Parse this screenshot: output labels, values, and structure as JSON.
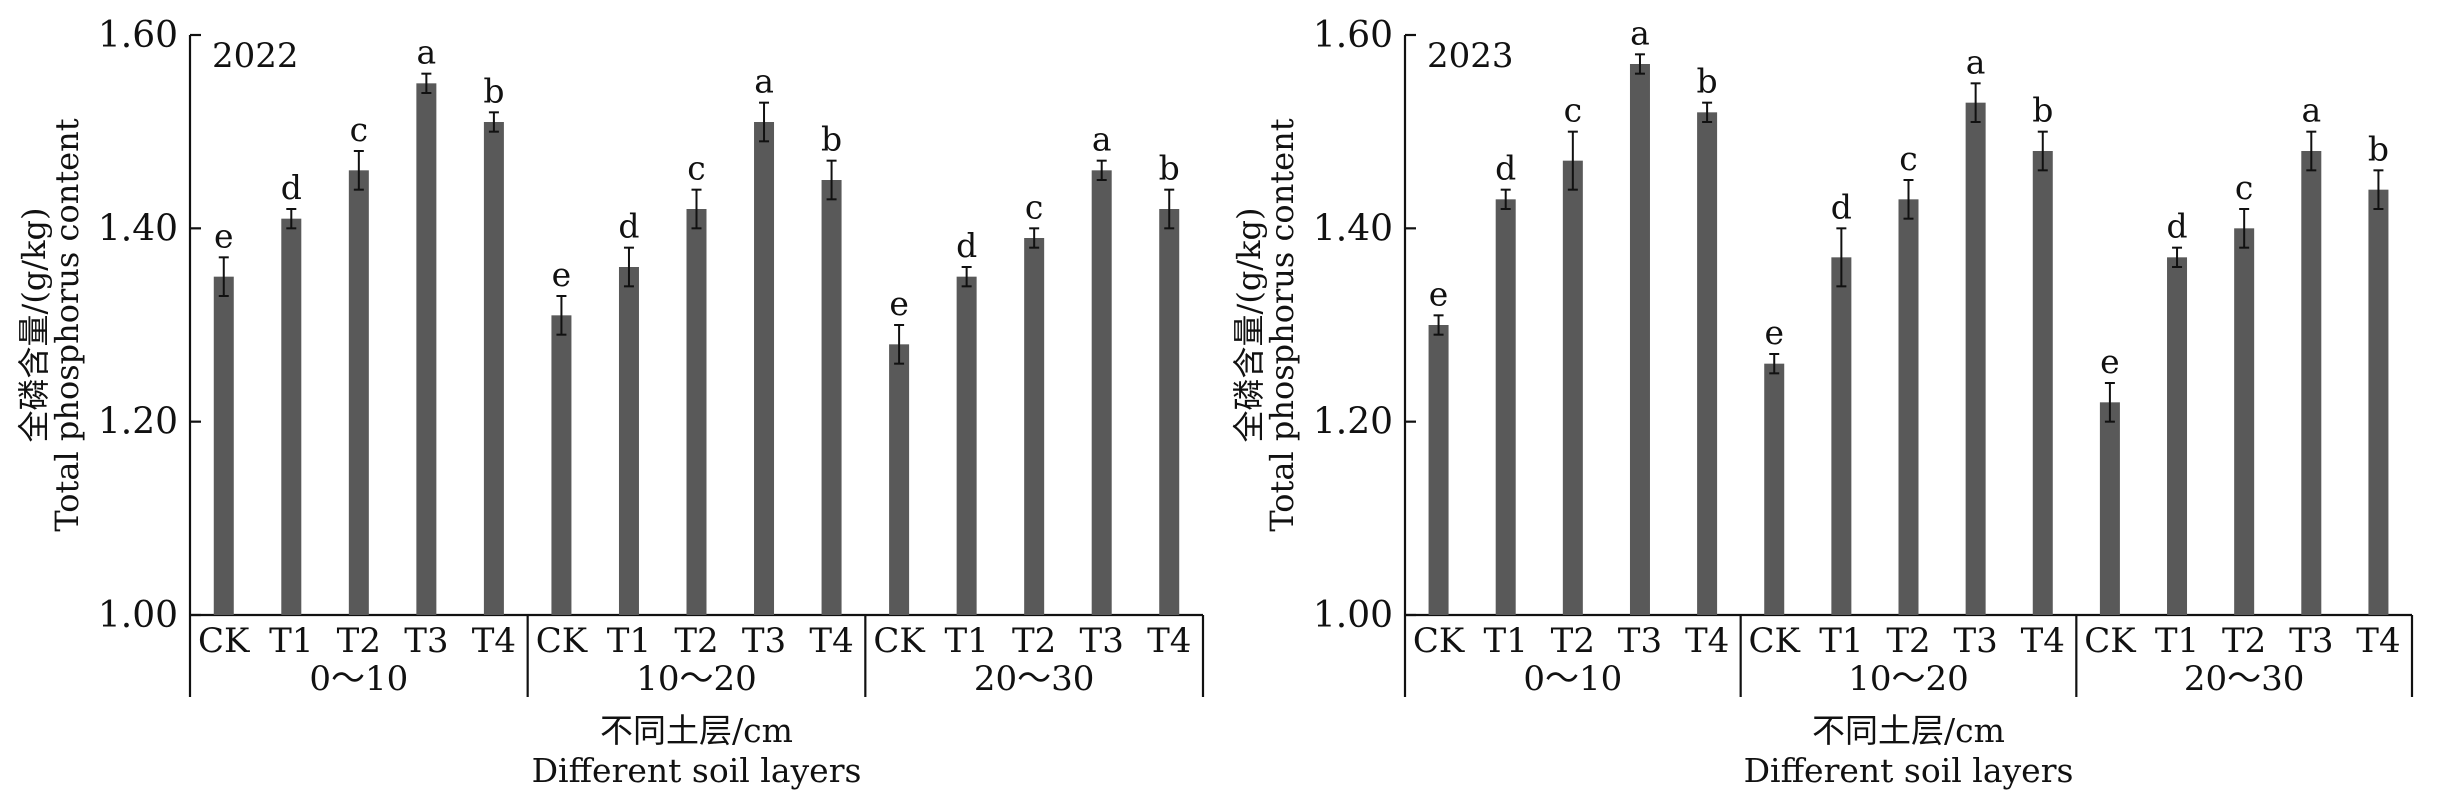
{
  "chart_data": [
    {
      "type": "bar",
      "year_label": "2022",
      "ylabel_cn": "全磷含量/(g/kg)",
      "ylabel_en": "Total phosphorus content",
      "xlabel_cn": "不同土层/cm",
      "xlabel_en": "Different soil layers",
      "ylim": [
        1.0,
        1.6
      ],
      "yticks": [
        "1.00",
        "1.20",
        "1.40",
        "1.60"
      ],
      "groups": [
        {
          "name": "0～10",
          "categories": [
            "CK",
            "T1",
            "T2",
            "T3",
            "T4"
          ],
          "values": [
            1.35,
            1.41,
            1.46,
            1.55,
            1.51
          ],
          "errors": [
            0.02,
            0.01,
            0.02,
            0.01,
            0.01
          ],
          "letters": [
            "e",
            "d",
            "c",
            "a",
            "b"
          ]
        },
        {
          "name": "10～20",
          "categories": [
            "CK",
            "T1",
            "T2",
            "T3",
            "T4"
          ],
          "values": [
            1.31,
            1.36,
            1.42,
            1.51,
            1.45
          ],
          "errors": [
            0.02,
            0.02,
            0.02,
            0.02,
            0.02
          ],
          "letters": [
            "e",
            "d",
            "c",
            "a",
            "b"
          ]
        },
        {
          "name": "20～30",
          "categories": [
            "CK",
            "T1",
            "T2",
            "T3",
            "T4"
          ],
          "values": [
            1.28,
            1.35,
            1.39,
            1.46,
            1.42
          ],
          "errors": [
            0.02,
            0.01,
            0.01,
            0.01,
            0.02
          ],
          "letters": [
            "e",
            "d",
            "c",
            "a",
            "b"
          ]
        }
      ]
    },
    {
      "type": "bar",
      "year_label": "2023",
      "ylabel_cn": "全磷含量/(g/kg)",
      "ylabel_en": "Total phosphorus content",
      "xlabel_cn": "不同土层/cm",
      "xlabel_en": "Different soil layers",
      "ylim": [
        1.0,
        1.6
      ],
      "yticks": [
        "1.00",
        "1.20",
        "1.40",
        "1.60"
      ],
      "groups": [
        {
          "name": "0～10",
          "categories": [
            "CK",
            "T1",
            "T2",
            "T3",
            "T4"
          ],
          "values": [
            1.3,
            1.43,
            1.47,
            1.57,
            1.52
          ],
          "errors": [
            0.01,
            0.01,
            0.03,
            0.01,
            0.01
          ],
          "letters": [
            "e",
            "d",
            "c",
            "a",
            "b"
          ]
        },
        {
          "name": "10～20",
          "categories": [
            "CK",
            "T1",
            "T2",
            "T3",
            "T4"
          ],
          "values": [
            1.26,
            1.37,
            1.43,
            1.53,
            1.48
          ],
          "errors": [
            0.01,
            0.03,
            0.02,
            0.02,
            0.02
          ],
          "letters": [
            "e",
            "d",
            "c",
            "a",
            "b"
          ]
        },
        {
          "name": "20～30",
          "categories": [
            "CK",
            "T1",
            "T2",
            "T3",
            "T4"
          ],
          "values": [
            1.22,
            1.37,
            1.4,
            1.48,
            1.44
          ],
          "errors": [
            0.02,
            0.01,
            0.02,
            0.02,
            0.02
          ],
          "letters": [
            "e",
            "d",
            "c",
            "a",
            "b"
          ]
        }
      ]
    }
  ]
}
